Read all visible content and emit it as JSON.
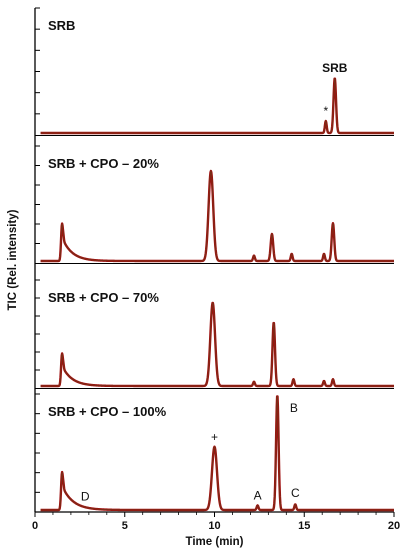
{
  "chart_data": {
    "type": "line",
    "xlabel": "Time (min)",
    "ylabel": "TIC (Rel. intensity)",
    "xlim": [
      0,
      20
    ],
    "xticks": [
      0,
      5,
      10,
      15,
      20
    ],
    "ylim": [
      0,
      1
    ],
    "series_color": "#a01010",
    "baseline_color": "#6b3a1a",
    "panels": [
      {
        "title": "SRB",
        "peaks": [
          {
            "t": 16.2,
            "h": 0.12,
            "w": 0.05
          },
          {
            "t": 16.7,
            "h": 0.55,
            "w": 0.07
          }
        ],
        "tails": [],
        "annotations": [
          {
            "text": "*",
            "t": 16.2,
            "y": 0.12
          },
          {
            "text": "SRB",
            "t": 16.7,
            "y": 0.55
          }
        ]
      },
      {
        "title": "SRB + CPO – 20%",
        "peaks": [
          {
            "t": 1.5,
            "h": 0.38,
            "w": 0.05
          },
          {
            "t": 9.8,
            "h": 1.0,
            "w": 0.13
          },
          {
            "t": 12.2,
            "h": 0.06,
            "w": 0.05
          },
          {
            "t": 13.2,
            "h": 0.3,
            "w": 0.07
          },
          {
            "t": 14.3,
            "h": 0.08,
            "w": 0.05
          },
          {
            "t": 16.1,
            "h": 0.08,
            "w": 0.05
          },
          {
            "t": 16.6,
            "h": 0.42,
            "w": 0.07
          }
        ],
        "tails": [
          {
            "t": 1.6,
            "h": 0.22,
            "decay": 0.55
          }
        ],
        "annotations": []
      },
      {
        "title": "SRB + CPO – 70%",
        "peaks": [
          {
            "t": 1.5,
            "h": 0.35,
            "w": 0.05
          },
          {
            "t": 9.9,
            "h": 0.98,
            "w": 0.13
          },
          {
            "t": 12.2,
            "h": 0.05,
            "w": 0.05
          },
          {
            "t": 13.3,
            "h": 0.75,
            "w": 0.07
          },
          {
            "t": 14.4,
            "h": 0.08,
            "w": 0.05
          },
          {
            "t": 16.1,
            "h": 0.06,
            "w": 0.05
          },
          {
            "t": 16.6,
            "h": 0.08,
            "w": 0.05
          }
        ],
        "tails": [
          {
            "t": 1.6,
            "h": 0.2,
            "decay": 0.55
          }
        ],
        "annotations": []
      },
      {
        "title": "SRB + CPO – 100%",
        "peaks": [
          {
            "t": 1.5,
            "h": 0.3,
            "w": 0.05
          },
          {
            "t": 10.0,
            "h": 0.55,
            "w": 0.14
          },
          {
            "t": 12.4,
            "h": 0.04,
            "w": 0.05
          },
          {
            "t": 13.5,
            "h": 1.0,
            "w": 0.07
          },
          {
            "t": 14.5,
            "h": 0.05,
            "w": 0.05
          }
        ],
        "tails": [
          {
            "t": 1.6,
            "h": 0.18,
            "decay": 0.6
          }
        ],
        "annotations": [
          {
            "text": "+",
            "t": 10.0,
            "y": 0.55
          },
          {
            "text": "B",
            "t": 14.2,
            "y": 0.92,
            "anchor": "left"
          },
          {
            "text": "A",
            "t": 12.4,
            "y": 0.04
          },
          {
            "text": "C",
            "t": 14.5,
            "y": 0.06
          },
          {
            "text": "D",
            "t": 2.8,
            "y": 0.03
          }
        ]
      }
    ]
  }
}
